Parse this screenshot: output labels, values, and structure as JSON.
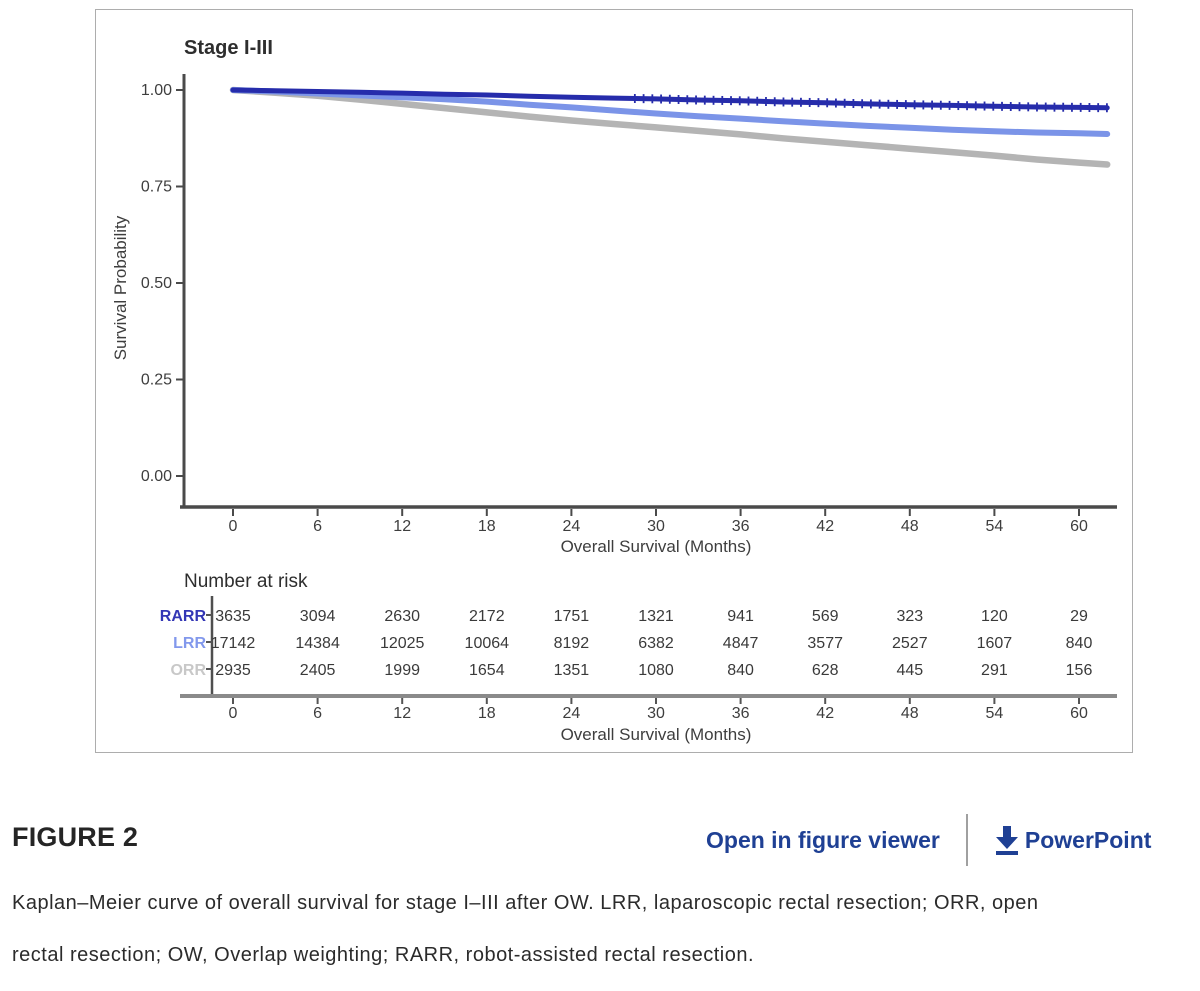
{
  "figure": {
    "label": "FIGURE 2",
    "links": {
      "open_viewer": "Open in figure viewer",
      "powerpoint": "PowerPoint"
    },
    "caption_lines": [
      "Kaplan–Meier curve of overall survival for stage I–III after OW. LRR, laparoscopic rectal resection; ORR, open",
      "rectal resection; OW, Overlap weighting; RARR, robot-assisted rectal resection."
    ]
  },
  "colors": {
    "rarr": "#262cab",
    "lrr": "#7b94e8",
    "orr": "#b4b4b4",
    "rarr_label": "#3336b5",
    "lrr_label": "#8298ec",
    "orr_label": "#c8c8c8",
    "axis": "#4a4a4a",
    "table_axis": "#8a8a8a",
    "tick_text": "#3e3e3e",
    "link_blue": "#1f4094",
    "title_text": "#2e2e2e"
  },
  "chart_data": {
    "type": "line",
    "title": "Stage I-III",
    "xlabel": "Overall Survival (Months)",
    "ylabel": "Survival Probability",
    "xlim": [
      0,
      62
    ],
    "ylim": [
      0,
      1.02
    ],
    "xticks": [
      0,
      6,
      12,
      18,
      24,
      30,
      36,
      42,
      48,
      54,
      60
    ],
    "yticks": [
      0.0,
      0.25,
      0.5,
      0.75,
      1.0
    ],
    "grid": false,
    "legend_position": "none",
    "series": [
      {
        "name": "ORR",
        "color": "#b4b4b4",
        "points": [
          [
            0,
            1.0
          ],
          [
            3,
            0.993
          ],
          [
            6,
            0.985
          ],
          [
            9,
            0.975
          ],
          [
            12,
            0.964
          ],
          [
            15,
            0.953
          ],
          [
            18,
            0.942
          ],
          [
            21,
            0.931
          ],
          [
            24,
            0.921
          ],
          [
            27,
            0.912
          ],
          [
            30,
            0.903
          ],
          [
            33,
            0.894
          ],
          [
            36,
            0.885
          ],
          [
            39,
            0.875
          ],
          [
            42,
            0.866
          ],
          [
            45,
            0.857
          ],
          [
            48,
            0.848
          ],
          [
            51,
            0.839
          ],
          [
            54,
            0.83
          ],
          [
            57,
            0.82
          ],
          [
            60,
            0.812
          ],
          [
            62,
            0.807
          ]
        ]
      },
      {
        "name": "LRR",
        "color": "#7b94e8",
        "points": [
          [
            0,
            1.0
          ],
          [
            3,
            0.996
          ],
          [
            6,
            0.991
          ],
          [
            9,
            0.986
          ],
          [
            12,
            0.981
          ],
          [
            15,
            0.976
          ],
          [
            18,
            0.97
          ],
          [
            21,
            0.962
          ],
          [
            24,
            0.955
          ],
          [
            27,
            0.947
          ],
          [
            30,
            0.939
          ],
          [
            33,
            0.932
          ],
          [
            36,
            0.926
          ],
          [
            39,
            0.919
          ],
          [
            42,
            0.913
          ],
          [
            45,
            0.907
          ],
          [
            48,
            0.902
          ],
          [
            51,
            0.897
          ],
          [
            54,
            0.893
          ],
          [
            57,
            0.89
          ],
          [
            60,
            0.888
          ],
          [
            62,
            0.886
          ]
        ]
      },
      {
        "name": "RARR",
        "color": "#262cab",
        "censored_range": [
          28.5,
          62
        ],
        "points": [
          [
            0,
            1.0
          ],
          [
            3,
            0.998
          ],
          [
            6,
            0.996
          ],
          [
            9,
            0.994
          ],
          [
            12,
            0.992
          ],
          [
            15,
            0.989
          ],
          [
            18,
            0.987
          ],
          [
            21,
            0.984
          ],
          [
            24,
            0.981
          ],
          [
            27,
            0.979
          ],
          [
            30,
            0.977
          ],
          [
            33,
            0.974
          ],
          [
            36,
            0.972
          ],
          [
            39,
            0.969
          ],
          [
            42,
            0.967
          ],
          [
            45,
            0.964
          ],
          [
            48,
            0.962
          ],
          [
            51,
            0.96
          ],
          [
            54,
            0.958
          ],
          [
            57,
            0.956
          ],
          [
            60,
            0.955
          ],
          [
            62,
            0.954
          ]
        ]
      }
    ]
  },
  "risk_table": {
    "title": "Number at risk",
    "xlabel": "Overall Survival (Months)",
    "months": [
      0,
      6,
      12,
      18,
      24,
      30,
      36,
      42,
      48,
      54,
      60
    ],
    "rows": [
      {
        "label": "RARR",
        "label_color": "#3336b5",
        "values": [
          3635,
          3094,
          2630,
          2172,
          1751,
          1321,
          941,
          569,
          323,
          120,
          29
        ]
      },
      {
        "label": "LRR",
        "label_color": "#8298ec",
        "values": [
          17142,
          14384,
          12025,
          10064,
          8192,
          6382,
          4847,
          3577,
          2527,
          1607,
          840
        ]
      },
      {
        "label": "ORR",
        "label_color": "#c8c8c8",
        "values": [
          2935,
          2405,
          1999,
          1654,
          1351,
          1080,
          840,
          628,
          445,
          291,
          156
        ]
      }
    ]
  }
}
